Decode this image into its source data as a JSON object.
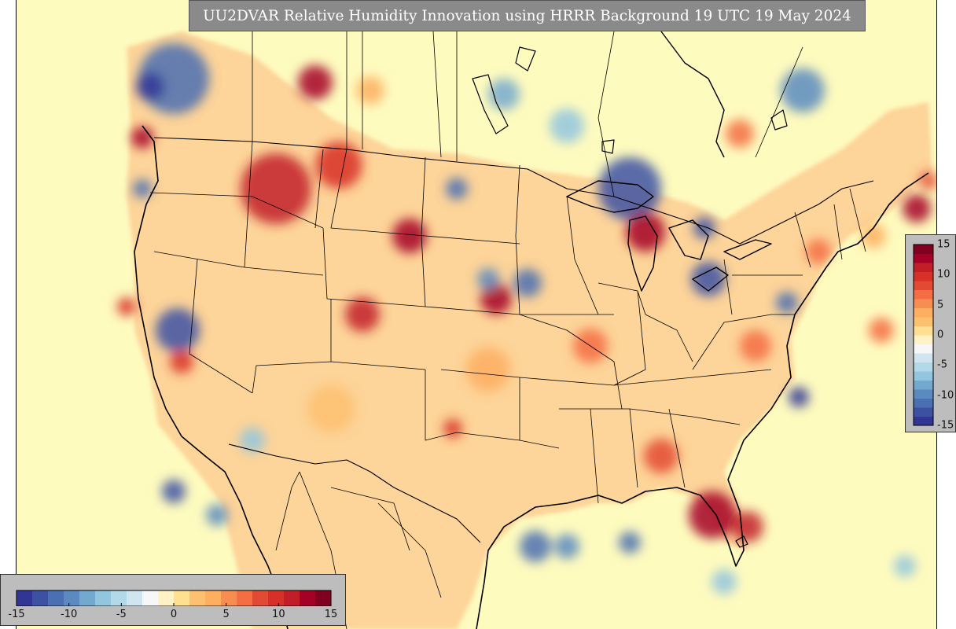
{
  "title": "UU2DVAR Relative Humidity Innovation using HRRR Background 19 UTC 19 May 2024",
  "colorbar": {
    "min": -15,
    "max": 15,
    "ticks": [
      {
        "value": -15,
        "label": "-15"
      },
      {
        "value": -10,
        "label": "-10"
      },
      {
        "value": -5,
        "label": "-5"
      },
      {
        "value": 0,
        "label": "0"
      },
      {
        "value": 5,
        "label": "5"
      },
      {
        "value": 10,
        "label": "10"
      },
      {
        "value": 15,
        "label": "15"
      }
    ],
    "colors": [
      "#313695",
      "#3d51a3",
      "#4a6fb2",
      "#5b8ac0",
      "#74a9cf",
      "#92c5de",
      "#b3d9e9",
      "#d1e5f0",
      "#f7f7f7",
      "#fff2c4",
      "#fee090",
      "#fdc070",
      "#fdae61",
      "#f88d52",
      "#f46d43",
      "#e34a33",
      "#d73027",
      "#c21e28",
      "#a50026",
      "#800020"
    ]
  },
  "map": {
    "background_color": "#fefbbf",
    "features": [
      "coastlines",
      "state-borders",
      "country-borders",
      "lakes"
    ]
  }
}
